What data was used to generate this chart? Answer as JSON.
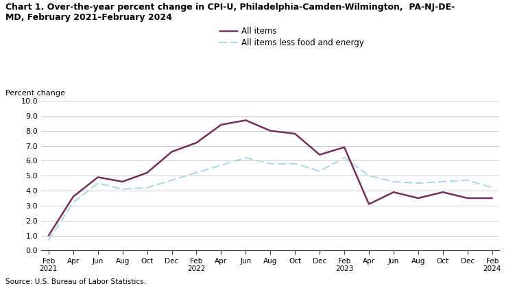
{
  "title": "Chart 1. Over-the-year percent change in CPI-U, Philadelphia-Camden-Wilmington,  PA-NJ-DE-\nMD, February 2021–February 2024",
  "ylabel": "Percent change",
  "source": "Source: U.S. Bureau of Labor Statistics.",
  "ylim": [
    0.0,
    10.0
  ],
  "yticks": [
    0.0,
    1.0,
    2.0,
    3.0,
    4.0,
    5.0,
    6.0,
    7.0,
    8.0,
    9.0,
    10.0
  ],
  "x_labels": [
    "Feb\n2021",
    "Apr",
    "Jun",
    "Aug",
    "Oct",
    "Dec",
    "Feb\n2022",
    "Apr",
    "Jun",
    "Aug",
    "Oct",
    "Dec",
    "Feb\n2023",
    "Apr",
    "Jun",
    "Aug",
    "Oct",
    "Dec",
    "Feb\n2024"
  ],
  "all_items": [
    1.0,
    3.6,
    4.9,
    4.6,
    5.2,
    6.6,
    7.2,
    8.4,
    8.7,
    8.0,
    7.8,
    6.4,
    6.9,
    3.1,
    3.9,
    3.5,
    3.9,
    3.5,
    3.5
  ],
  "core_items": [
    0.7,
    3.2,
    4.5,
    4.1,
    4.2,
    4.7,
    5.2,
    5.7,
    6.2,
    5.8,
    5.8,
    5.3,
    6.2,
    5.0,
    4.6,
    4.5,
    4.6,
    4.7,
    4.2
  ],
  "all_items_color": "#722F57",
  "core_items_color": "#add8e6",
  "legend_label_all": "All items",
  "legend_label_core": "All items less food and energy",
  "figsize": [
    7.51,
    4.2
  ],
  "dpi": 100
}
